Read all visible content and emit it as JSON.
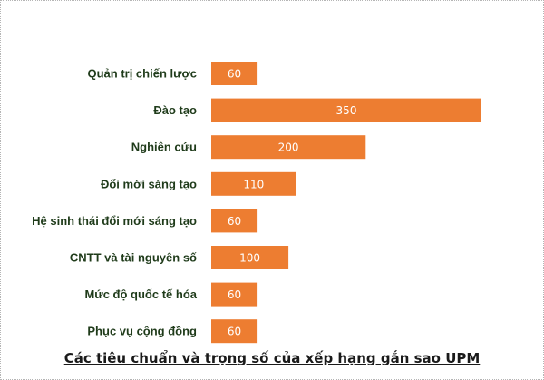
{
  "chart_data": {
    "type": "bar",
    "orientation": "horizontal",
    "title": "Các tiêu chuẩn và trọng số của xếp hạng gắn sao UPM",
    "categories": [
      "Quản trị chiến lược",
      "Đào tạo",
      "Nghiên cứu",
      "Đổi mới sáng tạo",
      "Hệ sinh thái đổi mới sáng tạo",
      "CNTT và tài nguyên số",
      "Mức độ quốc tế hóa",
      "Phục vụ cộng đồng"
    ],
    "values": [
      60,
      350,
      200,
      110,
      60,
      100,
      60,
      60
    ],
    "data_labels": [
      "60",
      "350",
      "200",
      "110",
      "60",
      "100",
      "60",
      "60"
    ],
    "xlim": [
      0,
      350
    ],
    "bar_color": "#ed7d31",
    "label_color": "#1f3b1a",
    "grid": false,
    "legend": "none"
  }
}
